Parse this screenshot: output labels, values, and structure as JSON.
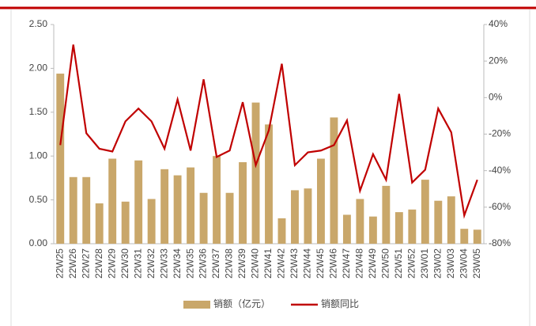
{
  "chart_data": {
    "type": "bar_line",
    "categories": [
      "22W25",
      "22W26",
      "22W27",
      "22W28",
      "22W29",
      "22W30",
      "22W31",
      "22W32",
      "22W33",
      "22W34",
      "22W35",
      "22W36",
      "22W37",
      "22W38",
      "22W39",
      "22W40",
      "22W41",
      "22W42",
      "22W43",
      "22W44",
      "22W45",
      "22W46",
      "22W47",
      "22W48",
      "22W49",
      "22W50",
      "22W51",
      "22W52",
      "23W01",
      "23W02",
      "23W03",
      "23W04",
      "23W05"
    ],
    "series": [
      {
        "name": "销额（亿元）",
        "type": "bar",
        "color": "#c9a76a",
        "values": [
          1.94,
          0.76,
          0.76,
          0.46,
          0.97,
          0.48,
          0.95,
          0.51,
          0.85,
          0.78,
          0.87,
          0.58,
          1.0,
          0.58,
          0.93,
          1.61,
          1.36,
          0.29,
          0.61,
          0.63,
          0.97,
          1.44,
          0.33,
          0.51,
          0.31,
          0.66,
          0.36,
          0.39,
          0.73,
          0.49,
          0.54,
          0.17,
          0.16
        ]
      },
      {
        "name": "销额同比",
        "type": "line",
        "axis": "y2",
        "color": "#c00000",
        "values": [
          -26,
          29,
          -19.5,
          -28,
          -29.5,
          -13,
          -6,
          -13,
          -28,
          -1,
          -29,
          10,
          -32.5,
          -29,
          -2.5,
          -37,
          -18,
          18.5,
          -37,
          -30,
          -29,
          -26,
          -12.5,
          -51,
          -31,
          -45,
          2,
          -46.5,
          -39.5,
          -6,
          -19,
          -64.5,
          -45
        ]
      }
    ],
    "ylim": [
      0,
      2.5
    ],
    "yticks": [
      {
        "value": 0,
        "label": "0.00"
      },
      {
        "value": 0.5,
        "label": "0.50"
      },
      {
        "value": 1,
        "label": "1.00"
      },
      {
        "value": 1.5,
        "label": "1.50"
      },
      {
        "value": 2,
        "label": "2.00"
      },
      {
        "value": 2.5,
        "label": "2.50"
      }
    ],
    "y2lim": [
      -80,
      40
    ],
    "y2ticks": [
      {
        "value": -80,
        "label": "-80%"
      },
      {
        "value": -60,
        "label": "-60%"
      },
      {
        "value": -40,
        "label": "-40%"
      },
      {
        "value": -20,
        "label": "-20%"
      },
      {
        "value": 0,
        "label": "0%"
      },
      {
        "value": 20,
        "label": "20%"
      },
      {
        "value": 40,
        "label": "40%"
      }
    ],
    "legend": "bottom"
  }
}
